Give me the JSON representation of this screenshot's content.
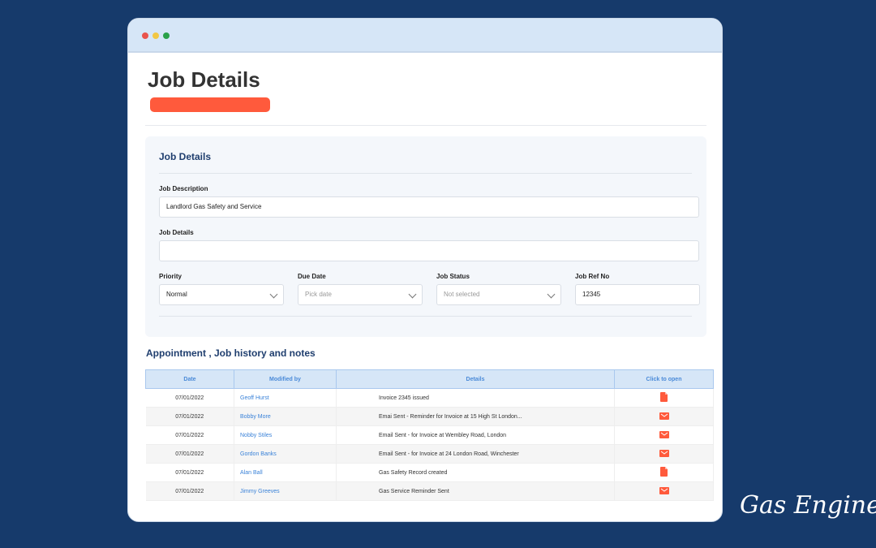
{
  "page": {
    "title": "Job Details"
  },
  "panel": {
    "heading": "Job Details",
    "job_description": {
      "label": "Job Description",
      "value": "Landlord Gas Safety and Service"
    },
    "job_details": {
      "label": "Job Details",
      "value": ""
    },
    "priority": {
      "label": "Priority",
      "value": "Normal"
    },
    "due_date": {
      "label": "Due Date",
      "placeholder": "Pick date"
    },
    "job_status": {
      "label": "Job Status",
      "placeholder": "Not selected"
    },
    "job_ref": {
      "label": "Job Ref No",
      "value": "12345"
    }
  },
  "history": {
    "title": "Appointment , Job history and notes",
    "columns": [
      "Date",
      "Modified by",
      "Details",
      "Click to open"
    ],
    "rows": [
      {
        "date": "07/01/2022",
        "by": "Geoff Hurst",
        "details": "Invoice 2345 issued",
        "icon": "document-icon"
      },
      {
        "date": "07/01/2022",
        "by": "Bobby More",
        "details": "Emai Sent - Reminder for Invoice at 15 High St London...",
        "icon": "email-icon"
      },
      {
        "date": "07/01/2022",
        "by": "Nobby Stiles",
        "details": "Email Sent - for Invoice at Wembley Road, London",
        "icon": "email-icon"
      },
      {
        "date": "07/01/2022",
        "by": "Gordon Banks",
        "details": "Email Sent - for Invoice at 24 London Road, Winchester",
        "icon": "email-icon"
      },
      {
        "date": "07/01/2022",
        "by": "Alan Ball",
        "details": "Gas Safety Record created",
        "icon": "document-icon"
      },
      {
        "date": "07/01/2022",
        "by": "Jimmy Greeves",
        "details": "Gas Service Reminder Sent",
        "icon": "email-icon"
      }
    ]
  },
  "brand": {
    "signature": "Gas Engineer Software"
  },
  "colors": {
    "background": "#163a6b",
    "accent": "#ff5a3c",
    "heading": "#1f3e6e",
    "link": "#3a82d8"
  }
}
